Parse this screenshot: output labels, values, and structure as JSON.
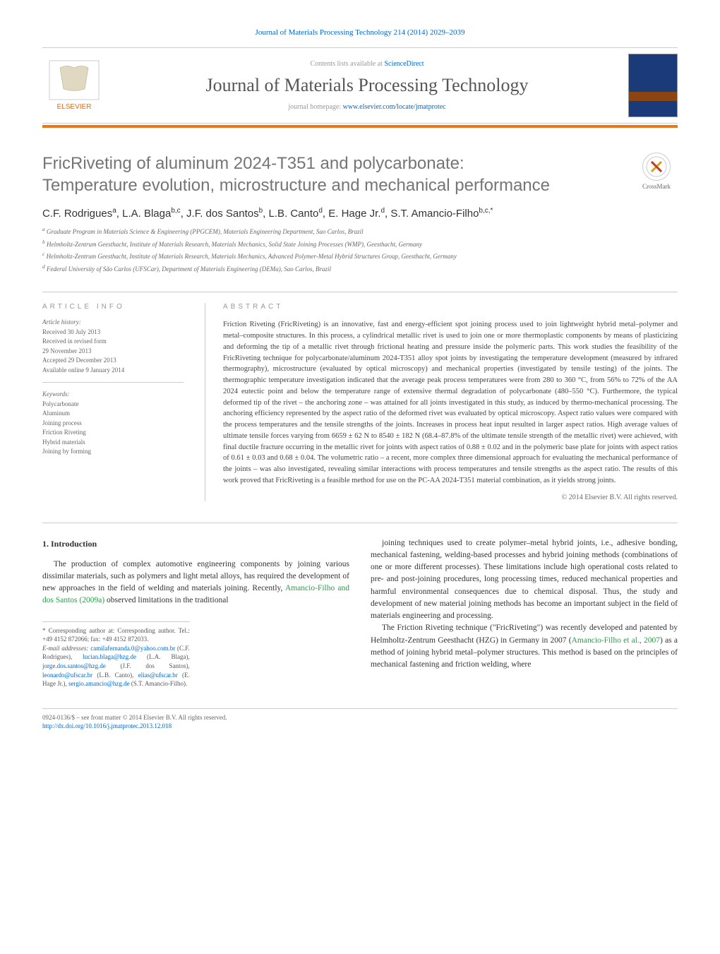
{
  "header": {
    "citation": "Journal of Materials Processing Technology 214 (2014) 2029–2039",
    "lists_available": "Contents lists available at ",
    "sciencedirect": "ScienceDirect",
    "journal_name": "Journal of Materials Processing Technology",
    "homepage_label": "journal homepage: ",
    "homepage_url": "www.elsevier.com/locate/jmatprotec",
    "publisher_logo_text": "ELSEVIER",
    "crossmark_label": "CrossMark"
  },
  "colors": {
    "accent_orange": "#e67817",
    "title_gray": "#757575",
    "link_blue": "#0066cc",
    "ref_green": "#2a9d4a",
    "text_gray": "#666"
  },
  "title": {
    "line1": "FricRiveting of aluminum 2024-T351 and polycarbonate:",
    "line2": "Temperature evolution, microstructure and mechanical performance"
  },
  "authors_html": "C.F. Rodrigues<sup>a</sup>, L.A. Blaga<sup>b,c</sup>, J.F. dos Santos<sup>b</sup>, L.B. Canto<sup>d</sup>, E. Hage Jr.<sup>d</sup>, S.T. Amancio-Filho<sup>b,c,*</sup>",
  "affiliations": [
    "a Graduate Program in Materials Science & Engineering (PPGCEM), Materials Engineering Department, Sao Carlos, Brazil",
    "b Helmholtz-Zentrum Geesthacht, Institute of Materials Research, Materials Mechanics, Solid State Joining Processes (WMP), Geesthacht, Germany",
    "c Helmholtz-Zentrum Geesthacht, Institute of Materials Research, Materials Mechanics, Advanced Polymer-Metal Hybrid Structures Group, Geesthacht, Germany",
    "d Federal University of São Carlos (UFSCar), Department of Materials Engineering (DEMa), Sao Carlos, Brazil"
  ],
  "article_info": {
    "head": "ARTICLE INFO",
    "history_label": "Article history:",
    "history": [
      "Received 30 July 2013",
      "Received in revised form",
      "29 November 2013",
      "Accepted 29 December 2013",
      "Available online 9 January 2014"
    ],
    "keywords_label": "Keywords:",
    "keywords": [
      "Polycarbonate",
      "Aluminum",
      "Joining process",
      "Friction Riveting",
      "Hybrid materials",
      "Joining by forming"
    ]
  },
  "abstract": {
    "head": "ABSTRACT",
    "text": "Friction Riveting (FricRiveting) is an innovative, fast and energy-efficient spot joining process used to join lightweight hybrid metal–polymer and metal–composite structures. In this process, a cylindrical metallic rivet is used to join one or more thermoplastic components by means of plasticizing and deforming the tip of a metallic rivet through frictional heating and pressure inside the polymeric parts. This work studies the feasibility of the FricRiveting technique for polycarbonate/aluminum 2024-T351 alloy spot joints by investigating the temperature development (measured by infrared thermography), microstructure (evaluated by optical microscopy) and mechanical properties (investigated by tensile testing) of the joints. The thermographic temperature investigation indicated that the average peak process temperatures were from 280 to 360 °C, from 56% to 72% of the AA 2024 eutectic point and below the temperature range of extensive thermal degradation of polycarbonate (480–550 °C). Furthermore, the typical deformed tip of the rivet – the anchoring zone – was attained for all joints investigated in this study, as induced by thermo-mechanical processing. The anchoring efficiency represented by the aspect ratio of the deformed rivet was evaluated by optical microscopy. Aspect ratio values were compared with the process temperatures and the tensile strengths of the joints. Increases in process heat input resulted in larger aspect ratios. High average values of ultimate tensile forces varying from 6659 ± 62 N to 8540 ± 182 N (68.4–87.8% of the ultimate tensile strength of the metallic rivet) were achieved, with final ductile fracture occurring in the metallic rivet for joints with aspect ratios of 0.88 ± 0.02 and in the polymeric base plate for joints with aspect ratios of 0.61 ± 0.03 and 0.68 ± 0.04. The volumetric ratio – a recent, more complex three dimensional approach for evaluating the mechanical performance of the joints – was also investigated, revealing similar interactions with process temperatures and tensile strengths as the aspect ratio. The results of this work proved that FricRiveting is a feasible method for use on the PC-AA 2024-T351 material combination, as it yields strong joints.",
    "copyright": "© 2014 Elsevier B.V. All rights reserved."
  },
  "body": {
    "section_num": "1.",
    "section_title": "Introduction",
    "col1_para": "The production of complex automotive engineering components by joining various dissimilar materials, such as polymers and light metal alloys, has required the development of new approaches in the field of welding and materials joining. Recently, ",
    "col1_ref": "Amancio-Filho and dos Santos (2009a)",
    "col1_para_after": " observed limitations in the traditional",
    "col2_para1": "joining techniques used to create polymer–metal hybrid joints, i.e., adhesive bonding, mechanical fastening, welding-based processes and hybrid joining methods (combinations of one or more different processes). These limitations include high operational costs related to pre- and post-joining procedures, long processing times, reduced mechanical properties and harmful environmental consequences due to chemical disposal. Thus, the study and development of new material joining methods has become an important subject in the field of materials engineering and processing.",
    "col2_para2_before": "The Friction Riveting technique (\"FricRiveting\") was recently developed and patented by Helmholtz-Zentrum Geesthacht (HZG) in Germany in 2007 (",
    "col2_ref": "Amancio-Filho et al., 2007",
    "col2_para2_after": ") as a method of joining hybrid metal–polymer structures. This method is based on the principles of mechanical fastening and friction welding, where"
  },
  "footer": {
    "corresponding_label": "* Corresponding author at: Corresponding author. Tel.: +49 4152 872066; fax: +49 4152 872033.",
    "email_label": "E-mail addresses: ",
    "emails": [
      {
        "addr": "camilafernanda.0@yahoo.com.br",
        "name": "(C.F. Rodrigues),"
      },
      {
        "addr": "lucian.blaga@hzg.de",
        "name": "(L.A. Blaga),"
      },
      {
        "addr": "jorge.dos.santos@hzg.de",
        "name": "(J.F. dos Santos),"
      },
      {
        "addr": "leonardo@ufscar.br",
        "name": "(L.B. Canto),"
      },
      {
        "addr": "elias@ufscar.br",
        "name": "(E. Hage Jr.),"
      },
      {
        "addr": "sergio.amancio@hzg.de",
        "name": "(S.T. Amancio-Filho)."
      }
    ],
    "issn_line": "0924-0136/$ – see front matter © 2014 Elsevier B.V. All rights reserved.",
    "doi_label": "http://dx.doi.org/10.1016/j.jmatprotec.2013.12.018"
  }
}
